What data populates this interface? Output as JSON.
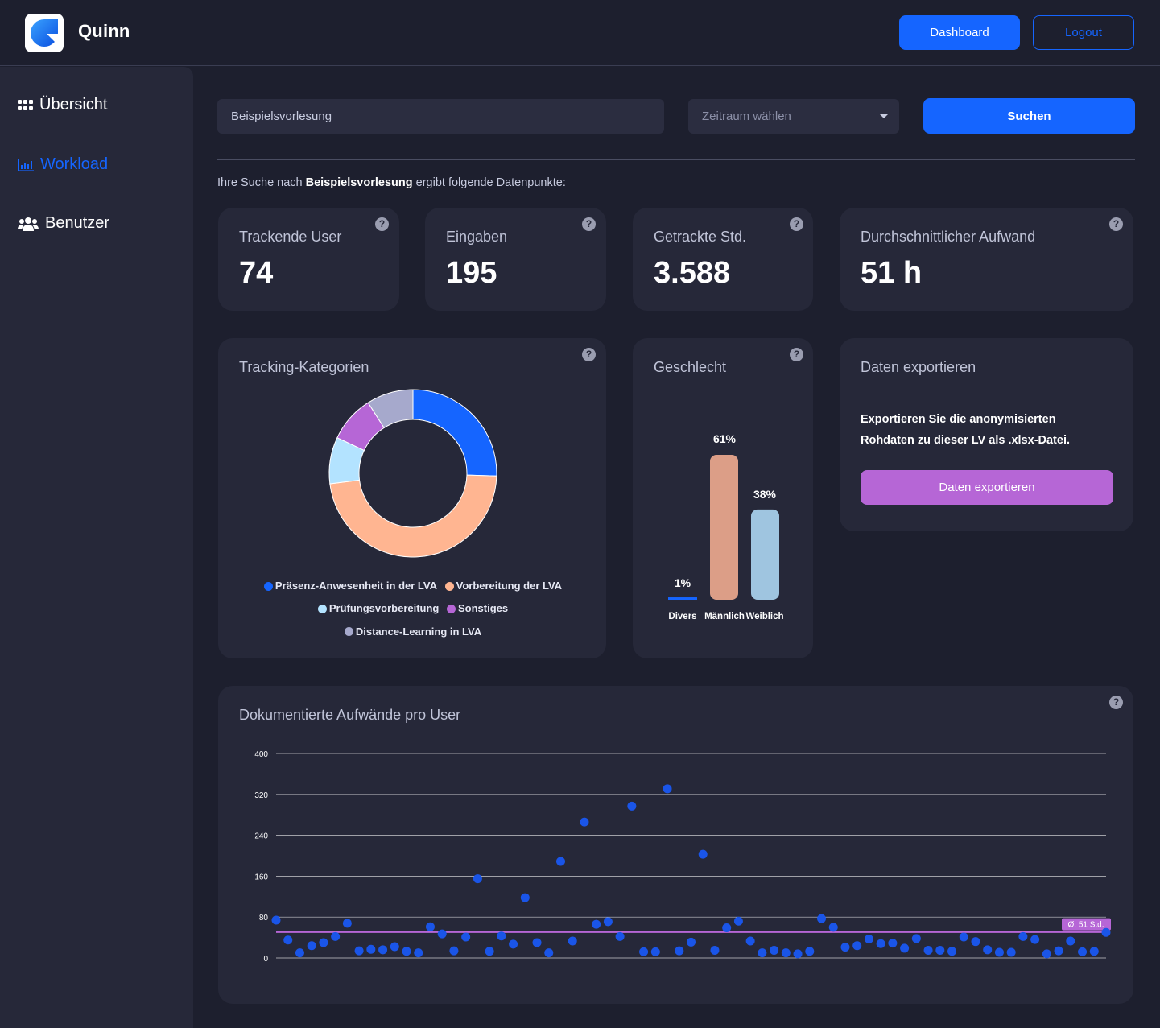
{
  "header": {
    "app_name": "Quinn",
    "dashboard_label": "Dashboard",
    "logout_label": "Logout"
  },
  "sidebar": {
    "items": [
      {
        "label": "Übersicht",
        "icon": "grid-icon",
        "active": false
      },
      {
        "label": "Workload",
        "icon": "bar-chart-icon",
        "active": true
      },
      {
        "label": "Benutzer",
        "icon": "users-icon",
        "active": false
      }
    ]
  },
  "search": {
    "value": "Beispielsvorlesung",
    "period_placeholder": "Zeitraum wählen",
    "button_label": "Suchen",
    "result_prefix": "Ihre Suche nach",
    "result_term": "Beispielsvorlesung",
    "result_suffix": "ergibt folgende Datenpunkte:"
  },
  "stats": [
    {
      "label": "Trackende User",
      "value": "74"
    },
    {
      "label": "Eingaben",
      "value": "195"
    },
    {
      "label": "Getrackte Std.",
      "value": "3.588"
    },
    {
      "label": "Durchschnittlicher Aufwand",
      "value": "51 h"
    }
  ],
  "help_symbol": "?",
  "colors": {
    "accent": "#1565ff",
    "background": "#1d1f2e",
    "card": "#262839",
    "export_button": "#b666d6",
    "average_line": "#b666d6"
  },
  "tracking": {
    "title": "Tracking-Kategorien",
    "legend": [
      {
        "label": "Präsenz-Anwesenheit in der LVA",
        "color": "#1565ff"
      },
      {
        "label": "Vorbereitung der LVA",
        "color": "#ffb591"
      },
      {
        "label": "Prüfungsvorbereitung",
        "color": "#b3e3ff"
      },
      {
        "label": "Sonstiges",
        "color": "#b666d6"
      },
      {
        "label": "Distance-Learning in LVA",
        "color": "#a6a9cc"
      }
    ]
  },
  "gender": {
    "title": "Geschlecht",
    "categories": [
      {
        "label": "Divers",
        "value_label": "1%"
      },
      {
        "label": "Männlich",
        "value_label": "61%"
      },
      {
        "label": "Weiblich",
        "value_label": "38%"
      }
    ]
  },
  "export": {
    "title": "Daten exportieren",
    "description": "Exportieren Sie die anonymisierten Rohdaten zu dieser LV als .xlsx-Datei.",
    "button_label": "Daten exportieren"
  },
  "scatter_title": "Dokumentierte Aufwände pro User",
  "avg_label": "Ø: 51 Std.",
  "chart_data": [
    {
      "type": "pie",
      "title": "Tracking-Kategorien",
      "categories": [
        "Präsenz-Anwesenheit in der LVA",
        "Vorbereitung der LVA",
        "Prüfungsvorbereitung",
        "Sonstiges",
        "Distance-Learning in LVA"
      ],
      "values": [
        25.5,
        47.5,
        9,
        9,
        9
      ],
      "colors": [
        "#1565ff",
        "#ffb591",
        "#b3e3ff",
        "#b666d6",
        "#a6a9cc"
      ],
      "donut": true
    },
    {
      "type": "bar",
      "title": "Geschlecht",
      "categories": [
        "Divers",
        "Männlich",
        "Weiblich"
      ],
      "values": [
        1,
        61,
        38
      ],
      "data_labels": [
        "1%",
        "61%",
        "38%"
      ],
      "colors": [
        "#1565ff",
        "#dc9e87",
        "#9fc5e0"
      ]
    },
    {
      "type": "scatter",
      "title": "Dokumentierte Aufwände pro User",
      "ylim": [
        0,
        400
      ],
      "yticks": [
        0,
        80,
        160,
        240,
        320,
        400
      ],
      "grid": true,
      "average": 51,
      "average_label": "Ø: 51 Std.",
      "point_color": "#1a55e8",
      "values": [
        74,
        35,
        10,
        24,
        30,
        42,
        68,
        14,
        17,
        16,
        22,
        13,
        10,
        61,
        47,
        14,
        41,
        155,
        13,
        43,
        27,
        118,
        30,
        10,
        189,
        33,
        266,
        66,
        71,
        42,
        297,
        12,
        12,
        331,
        14,
        31,
        203,
        15,
        59,
        72,
        33,
        10,
        15,
        10,
        8,
        13,
        77,
        60,
        21,
        24,
        37,
        28,
        29,
        19,
        38,
        15,
        15,
        13,
        41,
        32,
        16,
        11,
        11,
        42,
        36,
        8,
        14,
        33,
        12,
        13,
        50
      ]
    }
  ]
}
